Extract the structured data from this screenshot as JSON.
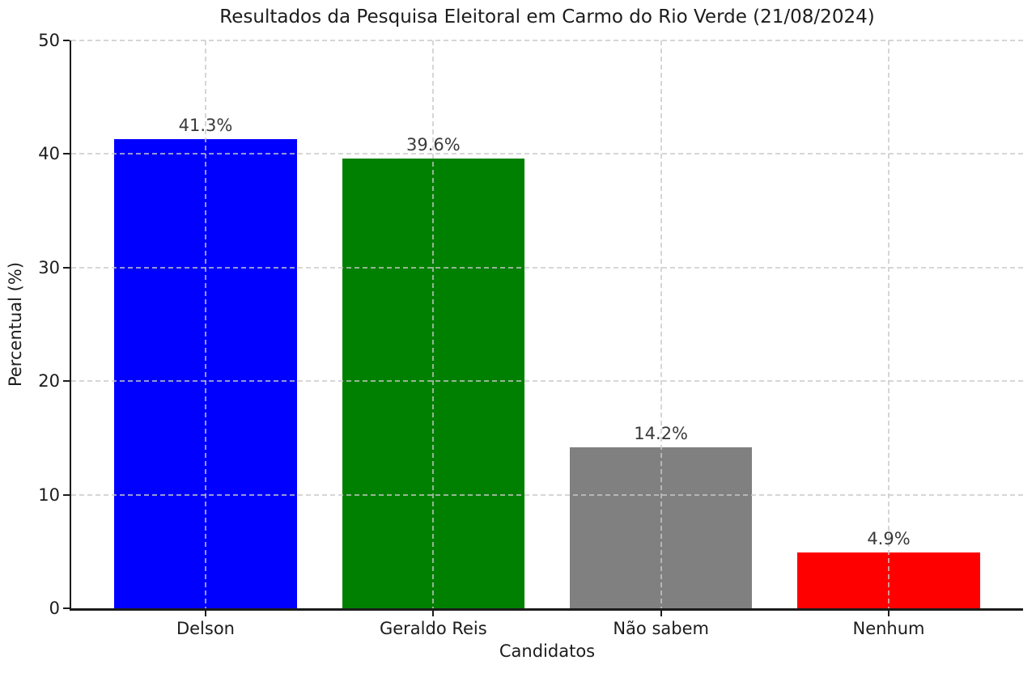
{
  "chart_data": {
    "type": "bar",
    "title": "Resultados da Pesquisa Eleitoral em Carmo do Rio Verde (21/08/2024)",
    "xlabel": "Candidatos",
    "ylabel": "Percentual (%)",
    "categories": [
      "Delson",
      "Geraldo Reis",
      "Não sabem",
      "Nenhum"
    ],
    "values": [
      41.3,
      39.6,
      14.2,
      4.9
    ],
    "value_labels": [
      "41.3%",
      "39.6%",
      "14.2%",
      "4.9%"
    ],
    "bar_colors": [
      "#0000ff",
      "#008000",
      "#808080",
      "#ff0000"
    ],
    "ylim": [
      0,
      50
    ],
    "yticks": [
      0,
      10,
      20,
      30,
      40,
      50
    ],
    "ytick_labels": [
      "0",
      "10",
      "20",
      "30",
      "40",
      "50"
    ],
    "grid": {
      "visible": true,
      "style": "dashed",
      "axis": "both",
      "color": "#cccccc",
      "above_bars": true
    },
    "legend": {
      "visible": false
    },
    "background_color": "#ffffff",
    "spine_color": "#1c1c1c",
    "tick_text_color": "#1c1c1c",
    "bar_label_color": "#3a3a3a",
    "spines_visible": [
      "left",
      "bottom"
    ]
  }
}
